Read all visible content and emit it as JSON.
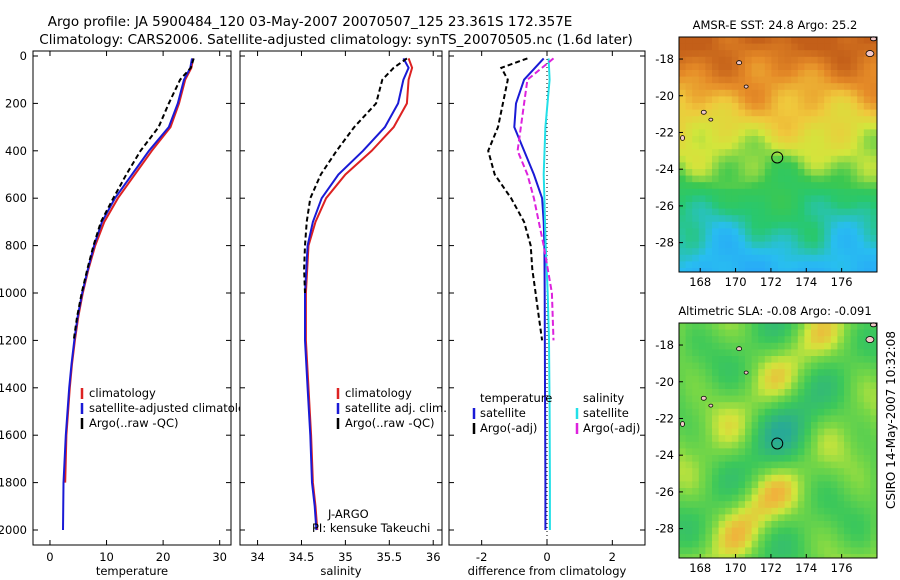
{
  "header": {
    "title_line1": "Argo profile: JA 5900484_120 03-May-2007 20070507_125 23.361S 172.357E",
    "title_line2": "Climatology: CARS2006. Satellite-adjusted climatology: synTS_20070505.nc (1.6d later)"
  },
  "footer": {
    "credit": "CSIRO 14-May-2007 10:32:08"
  },
  "colors": {
    "climatology": "#dd2222",
    "satellite": "#1a1ad6",
    "argo": "#000000",
    "satellite_diff": "#22e0e8",
    "argo_adj_salinity": "#dd22dd"
  },
  "chart_data": [
    {
      "id": "temperature",
      "type": "line",
      "xlabel": "temperature",
      "ylabel": "",
      "xlim": [
        -3,
        32
      ],
      "ylim": [
        2050,
        0
      ],
      "y_reversed": true,
      "xticks": [
        0,
        10,
        20,
        30
      ],
      "yticks": [
        0,
        200,
        400,
        600,
        800,
        1000,
        1200,
        1400,
        1600,
        1800,
        2000
      ],
      "legend": [
        "climatology",
        "satellite-adjusted climatology",
        "Argo(..raw -QC)"
      ],
      "series": [
        {
          "name": "climatology",
          "color_key": "climatology",
          "dash": "",
          "x": [
            25.3,
            25.0,
            23.9,
            22.8,
            21.3,
            18.0,
            15.0,
            12.0,
            9.6,
            8.0,
            6.8,
            5.8,
            5.0,
            4.4,
            3.9,
            3.5,
            3.2,
            2.9,
            2.7
          ],
          "y": [
            10,
            50,
            100,
            200,
            300,
            400,
            500,
            600,
            700,
            800,
            900,
            1000,
            1100,
            1200,
            1300,
            1400,
            1500,
            1600,
            1800
          ]
        },
        {
          "name": "satellite-adjusted climatology",
          "color_key": "satellite",
          "dash": "",
          "x": [
            25.1,
            24.8,
            23.7,
            22.6,
            21.0,
            17.5,
            14.5,
            11.5,
            9.2,
            7.8,
            6.7,
            5.7,
            4.9,
            4.3,
            3.8,
            3.4,
            3.1,
            2.8,
            2.4,
            2.3
          ],
          "y": [
            10,
            50,
            100,
            200,
            300,
            400,
            500,
            600,
            700,
            800,
            900,
            1000,
            1100,
            1200,
            1300,
            1400,
            1500,
            1600,
            1800,
            2000
          ]
        },
        {
          "name": "Argo(..raw -QC)",
          "color_key": "argo",
          "dash": "5,3",
          "x": [
            25.4,
            24.9,
            23.0,
            21.0,
            19.2,
            16.0,
            13.5,
            11.2,
            9.0,
            7.7,
            6.6,
            5.6,
            4.8,
            4.2
          ],
          "y": [
            10,
            50,
            100,
            200,
            300,
            400,
            500,
            600,
            700,
            800,
            900,
            1000,
            1100,
            1200
          ]
        }
      ]
    },
    {
      "id": "salinity",
      "type": "line",
      "xlabel": "salinity",
      "ylabel": "",
      "xlim": [
        33.8,
        36.1
      ],
      "ylim": [
        2050,
        0
      ],
      "y_reversed": true,
      "xticks": [
        34,
        34.5,
        35,
        35.5,
        36
      ],
      "legend": [
        "climatology",
        "satellite adj. clim.",
        "Argo(..raw -QC)"
      ],
      "annotations": [
        "J-ARGO",
        "PI: kensuke Takeuchi"
      ],
      "series": [
        {
          "name": "climatology",
          "color_key": "climatology",
          "dash": "",
          "x": [
            35.72,
            35.76,
            35.72,
            35.7,
            35.55,
            35.3,
            35.0,
            34.78,
            34.66,
            34.58,
            34.55,
            34.55,
            34.58,
            34.61,
            34.63,
            34.66,
            34.68
          ],
          "y": [
            10,
            50,
            100,
            200,
            300,
            400,
            500,
            600,
            700,
            800,
            1000,
            1200,
            1400,
            1600,
            1800,
            1900,
            2000
          ]
        },
        {
          "name": "satellite adj. clim.",
          "color_key": "satellite",
          "dash": "",
          "x": [
            35.66,
            35.72,
            35.66,
            35.6,
            35.45,
            35.2,
            34.92,
            34.73,
            34.63,
            34.57,
            34.54,
            34.54,
            34.57,
            34.6,
            34.62,
            34.65,
            34.67
          ],
          "y": [
            10,
            50,
            100,
            200,
            300,
            400,
            500,
            600,
            700,
            800,
            1000,
            1200,
            1400,
            1600,
            1800,
            1900,
            2000
          ]
        },
        {
          "name": "Argo(..raw -QC)",
          "color_key": "argo",
          "dash": "5,3",
          "x": [
            35.7,
            35.55,
            35.42,
            35.35,
            35.1,
            34.9,
            34.72,
            34.6,
            34.56,
            34.54,
            34.53,
            34.54
          ],
          "y": [
            10,
            50,
            100,
            200,
            300,
            400,
            500,
            600,
            700,
            800,
            900,
            1000
          ]
        }
      ]
    },
    {
      "id": "difference",
      "type": "line",
      "xlabel": "difference from climatology",
      "ylabel": "",
      "xlim": [
        -3,
        3
      ],
      "ylim": [
        2050,
        0
      ],
      "y_reversed": true,
      "xticks": [
        -2,
        0,
        2
      ],
      "legend_left_title": "temperature",
      "legend_right_title": "salinity",
      "legend_left": [
        "satellite",
        "Argo(-adj)"
      ],
      "legend_right": [
        "satellite",
        "Argo(-adj)"
      ],
      "series": [
        {
          "name": "temperature satellite",
          "color_key": "satellite",
          "dash": "",
          "x": [
            -0.1,
            -0.7,
            -0.95,
            -1.0,
            -0.7,
            -0.4,
            -0.15,
            -0.1,
            -0.08,
            -0.07,
            -0.06,
            -0.05,
            -0.05
          ],
          "y": [
            10,
            100,
            200,
            300,
            400,
            500,
            600,
            700,
            800,
            1000,
            1400,
            1800,
            2000
          ]
        },
        {
          "name": "temperature Argo(-adj)",
          "color_key": "argo",
          "dash": "5,3",
          "x": [
            -0.6,
            -1.4,
            -1.2,
            -1.5,
            -1.8,
            -1.6,
            -1.1,
            -0.7,
            -0.5,
            -0.45,
            -0.35,
            -0.25,
            -0.15
          ],
          "y": [
            10,
            50,
            100,
            300,
            400,
            500,
            600,
            700,
            800,
            900,
            1000,
            1100,
            1200
          ]
        },
        {
          "name": "salinity satellite",
          "color_key": "satellite_diff",
          "dash": "",
          "x": [
            0.05,
            0.08,
            -0.05,
            -0.1,
            -0.08,
            -0.06,
            -0.04,
            0.02,
            0.06,
            0.08,
            0.09,
            0.09
          ],
          "y": [
            10,
            100,
            300,
            500,
            600,
            700,
            800,
            1000,
            1200,
            1500,
            1800,
            2000
          ]
        },
        {
          "name": "salinity Argo(-adj)",
          "color_key": "argo_adj_salinity",
          "dash": "6,3",
          "x": [
            0.2,
            -0.6,
            -0.7,
            -0.9,
            -0.6,
            -0.4,
            -0.1,
            0.15,
            0.2
          ],
          "y": [
            10,
            100,
            200,
            400,
            500,
            600,
            800,
            1000,
            1200
          ]
        }
      ]
    },
    {
      "id": "sst_map",
      "type": "heatmap",
      "title": "AMSR-E SST: 24.8 Argo: 25.2",
      "xticks": [
        168,
        170,
        172,
        174,
        176
      ],
      "yticks": [
        -18,
        -20,
        -22,
        -24,
        -26,
        -28
      ],
      "xlim": [
        166.8,
        178.0
      ],
      "ylim": [
        -29.6,
        -16.8
      ],
      "marker": {
        "lon": 172.357,
        "lat": -23.361
      }
    },
    {
      "id": "sla_map",
      "type": "heatmap",
      "title": "Altimetric SLA: -0.08 Argo: -0.091",
      "xticks": [
        168,
        170,
        172,
        174,
        176
      ],
      "yticks": [
        -18,
        -20,
        -22,
        -24,
        -26,
        -28
      ],
      "xlim": [
        166.8,
        178.0
      ],
      "ylim": [
        -29.6,
        -16.8
      ],
      "marker": {
        "lon": 172.357,
        "lat": -23.361
      }
    }
  ]
}
